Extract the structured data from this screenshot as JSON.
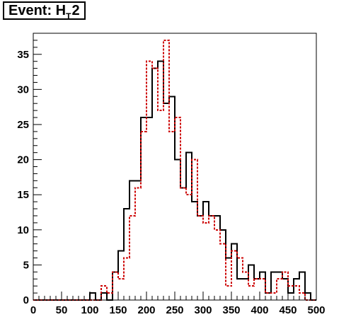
{
  "title": {
    "prefix": "Event: H",
    "sub": "T",
    "suffix": "2"
  },
  "chart_data": {
    "type": "histogram",
    "xlim": [
      0,
      500
    ],
    "ylim": [
      0,
      38
    ],
    "bin_width": 10,
    "x_ticks": [
      0,
      50,
      100,
      150,
      200,
      250,
      300,
      350,
      400,
      450,
      500
    ],
    "y_ticks": [
      0,
      5,
      10,
      15,
      20,
      25,
      30,
      35
    ],
    "x_tick_labels": [
      "0",
      "50",
      "100",
      "150",
      "200",
      "250",
      "300",
      "350",
      "400",
      "450",
      "500"
    ],
    "y_tick_labels": [
      "0",
      "5",
      "10",
      "15",
      "20",
      "25",
      "30",
      "35"
    ],
    "series": [
      {
        "color": "#000000",
        "style": "solid",
        "values": [
          0,
          0,
          0,
          0,
          0,
          0,
          0,
          0,
          0,
          0,
          1,
          0,
          1,
          0,
          4,
          7,
          13,
          17,
          17,
          26,
          26,
          33,
          34,
          28,
          29,
          20,
          16,
          21,
          14,
          12,
          14,
          12,
          12,
          10,
          6,
          8,
          3,
          3,
          5,
          3,
          4,
          1,
          4,
          4,
          3,
          1,
          3,
          4,
          1,
          0
        ]
      },
      {
        "color": "#cc0000",
        "style": "dashed",
        "values": [
          0,
          0,
          0,
          0,
          0,
          0,
          0,
          0,
          0,
          0,
          0,
          0,
          2,
          1,
          4,
          3,
          6,
          12,
          16,
          24,
          34,
          33,
          27,
          37,
          24,
          26,
          16,
          15,
          20,
          12,
          11,
          12,
          10,
          8,
          2,
          7,
          6,
          4,
          2,
          3,
          3,
          1,
          1,
          3,
          4,
          2,
          2,
          1,
          0,
          0
        ]
      }
    ]
  }
}
